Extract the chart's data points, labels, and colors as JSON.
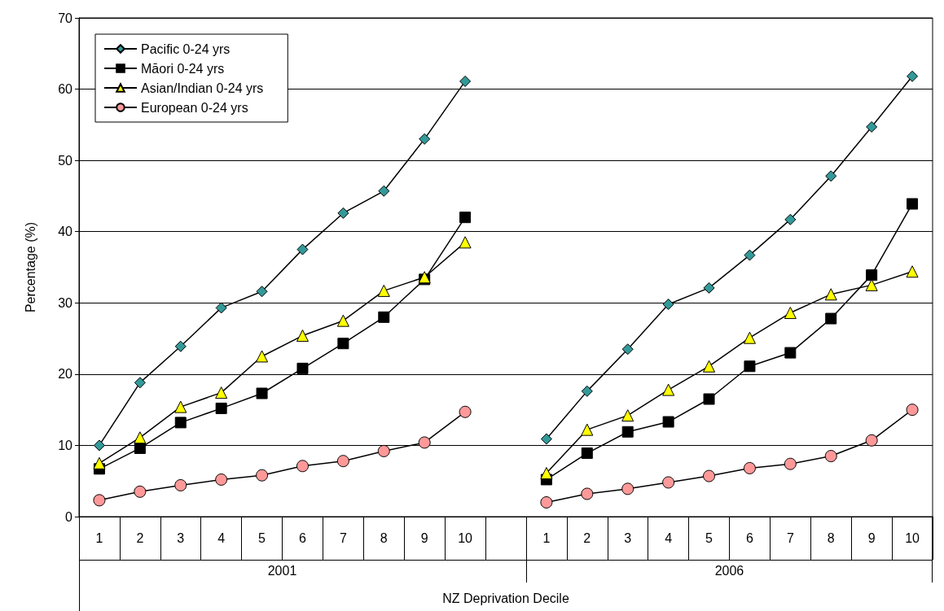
{
  "chart_data": {
    "type": "line",
    "xlabel": "NZ Deprivation Decile",
    "ylabel": "Percentage (%)",
    "categories": [
      "1",
      "2",
      "3",
      "4",
      "5",
      "6",
      "7",
      "8",
      "9",
      "10",
      null,
      "1",
      "2",
      "3",
      "4",
      "5",
      "6",
      "7",
      "8",
      "9",
      "10"
    ],
    "annotations": [
      "2001",
      "2006"
    ],
    "ylim": [
      0,
      70
    ],
    "yticks": [
      0,
      10,
      20,
      30,
      40,
      50,
      60,
      70
    ],
    "grid": "y",
    "legend": "top left",
    "line_style": "solid",
    "series": [
      {
        "name": "Pacific 0-24 yrs",
        "color": "#339999",
        "marker": "diamond",
        "values": [
          10,
          18.8,
          23.9,
          29.3,
          31.6,
          37.5,
          42.6,
          45.7,
          53,
          61.1,
          null,
          10.9,
          17.6,
          23.5,
          29.8,
          32.1,
          36.7,
          41.7,
          47.8,
          54.7,
          61.8
        ]
      },
      {
        "name": "Māori 0-24 yrs",
        "color": "#000000",
        "marker": "square",
        "values": [
          6.7,
          9.6,
          13.2,
          15.2,
          17.3,
          20.8,
          24.3,
          28,
          33.3,
          42,
          null,
          5.2,
          8.9,
          11.9,
          13.3,
          16.5,
          21.1,
          23,
          27.8,
          33.9,
          43.9
        ]
      },
      {
        "name": "Asian/Indian 0-24 yrs",
        "color": "#ffff00",
        "marker": "triangle",
        "values": [
          7.5,
          11.1,
          15.4,
          17.4,
          22.5,
          25.4,
          27.5,
          31.7,
          33.6,
          38.5,
          null,
          6.1,
          12.2,
          14.2,
          17.8,
          21.1,
          25.1,
          28.6,
          31.2,
          32.5,
          34.4
        ]
      },
      {
        "name": "European 0-24 yrs",
        "color": "#ff9999",
        "marker": "circle",
        "values": [
          2.3,
          3.5,
          4.4,
          5.2,
          5.8,
          7.1,
          7.8,
          9.2,
          10.4,
          14.7,
          null,
          2,
          3.2,
          3.9,
          4.8,
          5.7,
          6.8,
          7.4,
          8.5,
          10.7,
          15
        ]
      }
    ]
  }
}
